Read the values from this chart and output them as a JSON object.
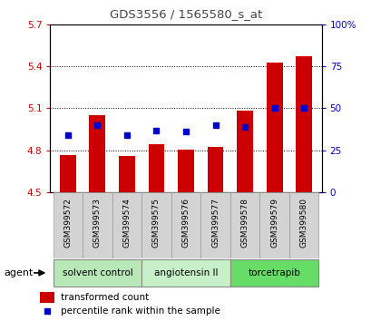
{
  "title": "GDS3556 / 1565580_s_at",
  "samples": [
    "GSM399572",
    "GSM399573",
    "GSM399574",
    "GSM399575",
    "GSM399576",
    "GSM399577",
    "GSM399578",
    "GSM399579",
    "GSM399580"
  ],
  "red_values": [
    4.765,
    5.052,
    4.762,
    4.843,
    4.808,
    4.826,
    5.082,
    5.424,
    5.472
  ],
  "blue_percentiles": [
    34,
    40,
    34,
    37,
    36,
    40,
    39,
    50,
    50
  ],
  "baseline": 4.5,
  "ylim_left": [
    4.5,
    5.7
  ],
  "ylim_right": [
    0,
    100
  ],
  "yticks_left": [
    4.5,
    4.8,
    5.1,
    5.4,
    5.7
  ],
  "yticks_right": [
    0,
    25,
    50,
    75,
    100
  ],
  "groups": [
    {
      "label": "solvent control",
      "start": 0,
      "end": 3,
      "color": "#b8e8b8"
    },
    {
      "label": "angiotensin II",
      "start": 3,
      "end": 6,
      "color": "#c8f0c8"
    },
    {
      "label": "torcetrapib",
      "start": 6,
      "end": 9,
      "color": "#66dd66"
    }
  ],
  "bar_color": "#cc0000",
  "blue_color": "#0000cc",
  "agent_label": "agent",
  "legend_red": "transformed count",
  "legend_blue": "percentile rank within the sample",
  "bar_width": 0.55,
  "title_fontsize": 9.5,
  "title_color": "#444444",
  "left_tick_color": "#cc0000",
  "right_tick_color": "#0000cc",
  "tick_fontsize": 7.5,
  "xlabel_fontsize": 6.5,
  "group_fontsize": 7.5,
  "legend_fontsize": 7.5
}
